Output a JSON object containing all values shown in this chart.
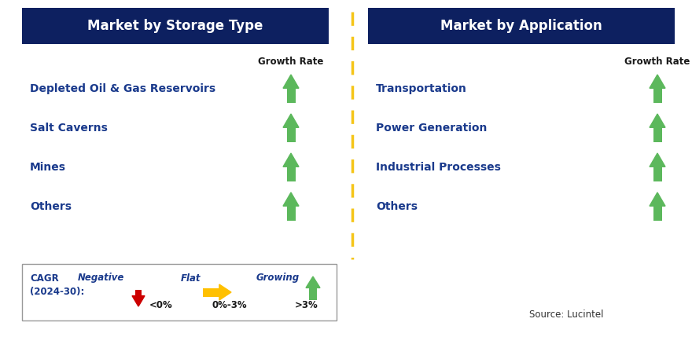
{
  "title_left": "Market by Storage Type",
  "title_right": "Market by Application",
  "header_bg": "#0d2060",
  "header_text_color": "#ffffff",
  "left_items": [
    "Depleted Oil & Gas Reservoirs",
    "Salt Caverns",
    "Mines",
    "Others"
  ],
  "right_items": [
    "Transportation",
    "Power Generation",
    "Industrial Processes",
    "Others"
  ],
  "item_text_color": "#1a3a8c",
  "growth_rate_label": "Growth Rate",
  "growth_rate_color": "#1a1a1a",
  "arrow_up_color": "#5cb85c",
  "arrow_down_color": "#cc0000",
  "arrow_flat_color": "#ffc000",
  "divider_color": "#f5c518",
  "bg_color": "#ffffff",
  "legend_border_color": "#999999",
  "source_text": "Source: Lucintel",
  "legend_cagr_line1": "CAGR",
  "legend_cagr_line2": "(2024-30):",
  "legend_cagr_color": "#1a3a8c",
  "legend_neg_label": "Negative",
  "legend_neg_range": "<0%",
  "legend_flat_label": "Flat",
  "legend_flat_range": "0%-3%",
  "legend_grow_label": "Growing",
  "legend_grow_range": ">3%",
  "legend_label_color": "#1a3a8c",
  "legend_range_color": "#1a1a1a"
}
